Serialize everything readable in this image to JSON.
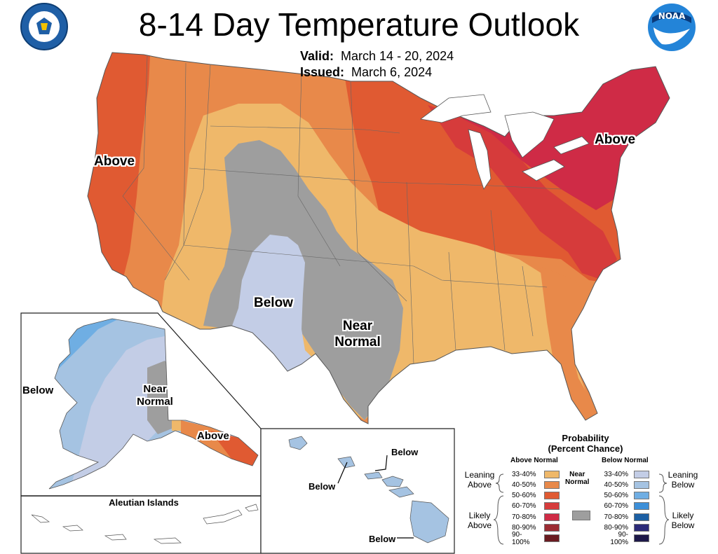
{
  "header": {
    "title": "8-14 Day Temperature Outlook",
    "valid_label": "Valid:",
    "valid_value": "March 14 - 20, 2024",
    "issued_label": "Issued:",
    "issued_value": "March 6, 2024"
  },
  "logos": {
    "left": "department-of-commerce-seal",
    "right": "noaa-logo",
    "noaa_text": "NOAA"
  },
  "colors": {
    "above_33_40": "#efb86a",
    "above_40_50": "#e8894a",
    "above_50_60": "#e05a32",
    "above_60_70": "#d63b3b",
    "above_70_80": "#cf2b46",
    "above_80_90": "#9c2c33",
    "above_90_100": "#6a1b20",
    "near_normal": "#9e9e9e",
    "below_33_40": "#c3cde6",
    "below_40_50": "#a5c3e2",
    "below_50_60": "#6faee3",
    "below_60_70": "#3c8fd8",
    "below_70_80": "#1c5fa3",
    "below_80_90": "#2b2a78",
    "below_90_100": "#1d1848"
  },
  "map_labels": {
    "conus_west_above": "Above",
    "conus_northeast_above": "Above",
    "conus_below": "Below",
    "conus_near_line1": "Near",
    "conus_near_line2": "Normal",
    "alaska_below": "Below",
    "alaska_near_line1": "Near",
    "alaska_near_line2": "Normal",
    "alaska_above": "Above",
    "aleutian_title": "Aleutian Islands",
    "hawaii_below_1": "Below",
    "hawaii_below_2": "Below",
    "hawaii_below_3": "Below"
  },
  "legend": {
    "title_line1": "Probability",
    "title_line2": "(Percent Chance)",
    "above_header": "Above Normal",
    "below_header": "Below Normal",
    "near_line1": "Near",
    "near_line2": "Normal",
    "leaning_above_1": "Leaning",
    "leaning_above_2": "Above",
    "likely_above_1": "Likely",
    "likely_above_2": "Above",
    "leaning_below_1": "Leaning",
    "leaning_below_2": "Below",
    "likely_below_1": "Likely",
    "likely_below_2": "Below",
    "above_items": [
      {
        "label": "33-40%",
        "color": "#efb86a"
      },
      {
        "label": "40-50%",
        "color": "#e8894a"
      },
      {
        "label": "50-60%",
        "color": "#e05a32"
      },
      {
        "label": "60-70%",
        "color": "#d63b3b"
      },
      {
        "label": "70-80%",
        "color": "#cf2b46"
      },
      {
        "label": "80-90%",
        "color": "#9c2c33"
      },
      {
        "label": "90-100%",
        "color": "#6a1b20"
      }
    ],
    "below_items": [
      {
        "label": "33-40%",
        "color": "#c3cde6"
      },
      {
        "label": "40-50%",
        "color": "#a5c3e2"
      },
      {
        "label": "50-60%",
        "color": "#6faee3"
      },
      {
        "label": "60-70%",
        "color": "#3c8fd8"
      },
      {
        "label": "70-80%",
        "color": "#1c5fa3"
      },
      {
        "label": "80-90%",
        "color": "#2b2a78"
      },
      {
        "label": "90-100%",
        "color": "#1d1848"
      }
    ]
  }
}
